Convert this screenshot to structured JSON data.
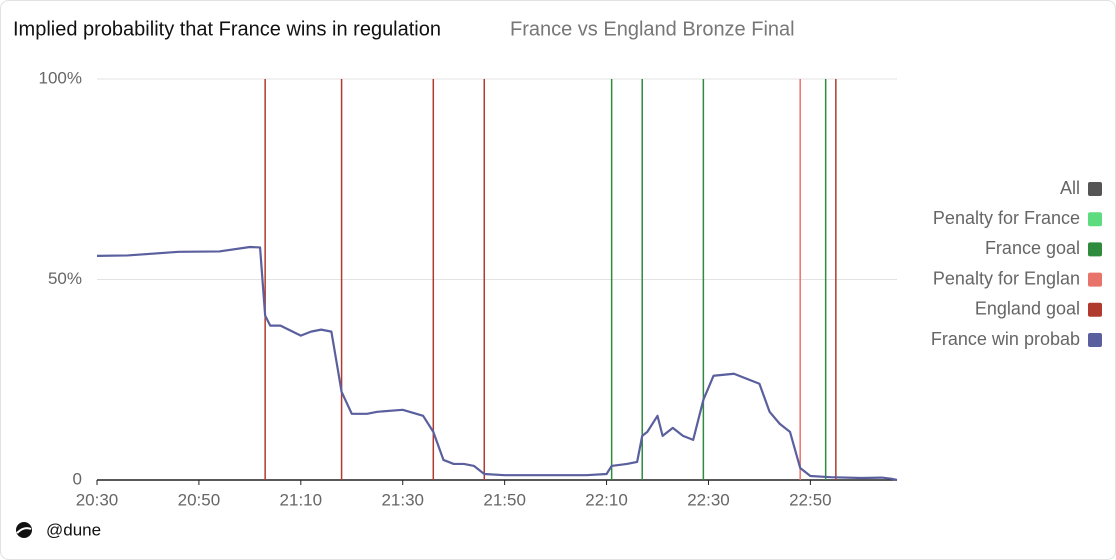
{
  "chart_data": {
    "type": "line",
    "title": "Implied probability that France wins in regulation",
    "subtitle": "France vs England Bronze Final",
    "footer": "@dune",
    "xlim": [
      1230,
      1387
    ],
    "xticks": [
      {
        "value": 1230,
        "label": "20:30"
      },
      {
        "value": 1250,
        "label": "20:50"
      },
      {
        "value": 1270,
        "label": "21:10"
      },
      {
        "value": 1290,
        "label": "21:30"
      },
      {
        "value": 1310,
        "label": "21:50"
      },
      {
        "value": 1330,
        "label": "22:10"
      },
      {
        "value": 1350,
        "label": "22:30"
      },
      {
        "value": 1370,
        "label": "22:50"
      }
    ],
    "ylim": [
      0,
      100
    ],
    "yticks": [
      0,
      {
        "value": 50,
        "label": "50%"
      },
      {
        "value": 100,
        "label": "100%"
      }
    ],
    "grid": true,
    "legend": "right",
    "series": [
      {
        "name": "All",
        "color": "#555555"
      },
      {
        "name": "Penalty for France",
        "color": "#5ddc7f",
        "x": []
      },
      {
        "name": "France goal",
        "color": "#2e8b3e",
        "x": [
          1331,
          1337,
          1349,
          1373
        ]
      },
      {
        "name": "Penalty for Englan",
        "color": "#e8736a",
        "x": [
          1368
        ]
      },
      {
        "name": "England goal",
        "color": "#b03a2e",
        "x": [
          1263,
          1278,
          1296,
          1306,
          1375
        ]
      },
      {
        "name": "France win probab",
        "color": "#5a5f9e",
        "x": [
          1230,
          1236,
          1246,
          1254,
          1260,
          1262,
          1263,
          1264,
          1266,
          1270,
          1272,
          1274,
          1276,
          1278,
          1280,
          1283,
          1285,
          1290,
          1294,
          1296,
          1298,
          1300,
          1302,
          1304,
          1306,
          1310,
          1316,
          1320,
          1326,
          1330,
          1331,
          1334,
          1336,
          1337,
          1338,
          1340,
          1341,
          1343,
          1345,
          1347,
          1349,
          1351,
          1355,
          1360,
          1362,
          1364,
          1366,
          1368,
          1370,
          1374,
          1380,
          1384,
          1386,
          1387
        ],
        "values": [
          55.9,
          56,
          56.9,
          57,
          58.1,
          58,
          41,
          38.5,
          38.5,
          36,
          37,
          37.5,
          37,
          22,
          16.5,
          16.5,
          17,
          17.5,
          16,
          12,
          5,
          4,
          4,
          3.5,
          1.5,
          1.2,
          1.2,
          1.2,
          1.2,
          1.5,
          3.5,
          4,
          4.5,
          11,
          12,
          16,
          11,
          13,
          11,
          10,
          20,
          26,
          26.5,
          24,
          17,
          14,
          12,
          3,
          1,
          0.7,
          0.5,
          0.6,
          0.3,
          0
        ]
      }
    ]
  }
}
